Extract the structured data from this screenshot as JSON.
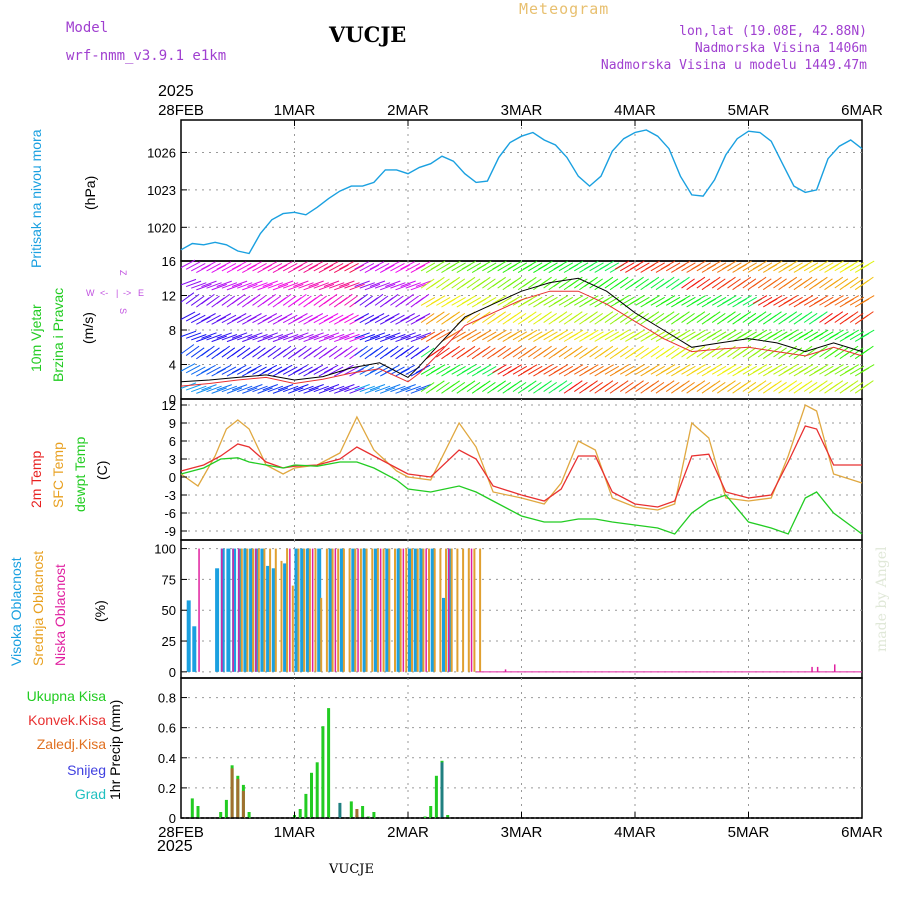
{
  "header": {
    "model_label": "Model",
    "model_name": "wrf-nmm_v3.9.1 e1km",
    "station": "VUCJE",
    "chart_kind": "Meteogram",
    "coords": "lon,lat (19.08E, 42.88N)",
    "elevation": "Nadmorska Visina 1406m",
    "model_elevation": "Nadmorska Visina u modelu 1449.47m",
    "year_top": "2025",
    "year_bottom": "2025",
    "footer_station": "VUCJE",
    "watermark": "made by Angel"
  },
  "colors": {
    "pressure": "#1aa0e0",
    "temp2m": "#e83030",
    "sfc_temp": "#e0a840",
    "dewpt": "#22cc22",
    "high_cloud": "#1aa0e0",
    "mid_cloud": "#e0a030",
    "low_cloud": "#e020a0",
    "total_precip": "#22cc22",
    "conv_precip": "#e83030",
    "frozen_precip": "#e07020",
    "snow": "#4040e0",
    "hail": "#20c0c0"
  },
  "chart_data": [
    {
      "type": "line",
      "panel": "pressure",
      "ylabel_lines": [
        "Pritisak na nivou mora",
        "(hPa)"
      ],
      "x_ticks": [
        "28FEB",
        "1MAR",
        "2MAR",
        "3MAR",
        "4MAR",
        "5MAR",
        "6MAR"
      ],
      "y_ticks": [
        1020,
        1023,
        1026
      ],
      "ylim": [
        1017.3,
        1028.6
      ],
      "grid": true,
      "series": [
        {
          "x": [
            0,
            0.1,
            0.2,
            0.3,
            0.4,
            0.5,
            0.6,
            0.7,
            0.8,
            0.9,
            1.0,
            1.1,
            1.2,
            1.3,
            1.4,
            1.5,
            1.6,
            1.7,
            1.8,
            1.9,
            2.0,
            2.1,
            2.2,
            2.3,
            2.4,
            2.5,
            2.6,
            2.7,
            2.8,
            2.9,
            3.0,
            3.1,
            3.2,
            3.3,
            3.4,
            3.5,
            3.6,
            3.7,
            3.8,
            3.9,
            4.0,
            4.1,
            4.2,
            4.3,
            4.4,
            4.5,
            4.6,
            4.7,
            4.8,
            4.9,
            5.0,
            5.1,
            5.2,
            5.3,
            5.4,
            5.5,
            5.6,
            5.7,
            5.8,
            5.9,
            6.0
          ],
          "values": [
            1018.2,
            1018.7,
            1018.6,
            1018.8,
            1018.6,
            1018.1,
            1017.9,
            1019.5,
            1020.6,
            1021.1,
            1021.2,
            1021.0,
            1021.6,
            1022.3,
            1022.9,
            1023.3,
            1023.3,
            1023.6,
            1024.6,
            1024.6,
            1024.3,
            1024.8,
            1025.1,
            1025.7,
            1025.3,
            1024.3,
            1023.6,
            1023.7,
            1025.6,
            1026.8,
            1027.3,
            1027.6,
            1027.0,
            1026.6,
            1025.6,
            1024.1,
            1023.3,
            1024.1,
            1026.1,
            1027.1,
            1027.6,
            1027.8,
            1027.3,
            1026.3,
            1024.1,
            1022.6,
            1022.5,
            1023.8,
            1025.8,
            1027.1,
            1027.7,
            1027.6,
            1026.9,
            1025.1,
            1023.3,
            1022.8,
            1023.0,
            1025.5,
            1026.5,
            1027.0,
            1026.3
          ]
        }
      ]
    },
    {
      "type": "line",
      "panel": "wind",
      "ylabel_lines": [
        "10m Vjetar",
        "Brzina i Pravac",
        "(m/s)"
      ],
      "direction_key": [
        "Z",
        "W",
        "<-",
        "|",
        "->",
        "E",
        "S"
      ],
      "y_ticks": [
        0,
        4,
        8,
        12,
        16
      ],
      "ylim": [
        0,
        16
      ],
      "grid": true,
      "series": [
        {
          "name": "wind_speed",
          "x": [
            0,
            0.25,
            0.5,
            0.75,
            1.0,
            1.25,
            1.5,
            1.75,
            2.0,
            2.1,
            2.25,
            2.5,
            2.75,
            3.0,
            3.25,
            3.5,
            3.75,
            4.0,
            4.25,
            4.5,
            4.75,
            5.0,
            5.25,
            5.5,
            5.75,
            6.0
          ],
          "values": [
            2.0,
            2.2,
            2.5,
            2.8,
            2.2,
            2.6,
            3.6,
            4.2,
            2.5,
            3.8,
            6.0,
            9.5,
            11.0,
            12.5,
            13.5,
            14.0,
            12.5,
            10.0,
            8.0,
            6.0,
            6.5,
            7.0,
            6.5,
            5.5,
            6.5,
            5.5
          ]
        },
        {
          "name": "wind_gust",
          "x": [
            0,
            0.25,
            0.5,
            0.75,
            1.0,
            1.25,
            1.5,
            1.75,
            2.0,
            2.1,
            2.25,
            2.5,
            2.75,
            3.0,
            3.25,
            3.5,
            3.75,
            4.0,
            4.25,
            4.5,
            4.75,
            5.0,
            5.25,
            5.5,
            5.75,
            6.0
          ],
          "values": [
            1.5,
            1.8,
            2.2,
            2.5,
            1.8,
            2.3,
            3.0,
            3.5,
            2.0,
            3.0,
            5.0,
            8.5,
            10.0,
            11.5,
            12.5,
            12.5,
            11.0,
            9.0,
            7.0,
            5.5,
            5.8,
            6.0,
            5.5,
            5.0,
            6.0,
            5.0
          ]
        }
      ]
    },
    {
      "type": "line",
      "panel": "temperature",
      "ylabel_lines": [
        "2m Temp",
        "SFC Temp",
        "dewpt Temp",
        "(C)"
      ],
      "y_ticks": [
        -9,
        -6,
        -3,
        0,
        3,
        6,
        9,
        12
      ],
      "ylim": [
        -10.5,
        13
      ],
      "grid": true,
      "series": [
        {
          "name": "2m Temp",
          "x": [
            0,
            0.2,
            0.35,
            0.5,
            0.6,
            0.75,
            0.9,
            1.0,
            1.2,
            1.4,
            1.55,
            1.7,
            1.9,
            2.0,
            2.2,
            2.45,
            2.6,
            2.75,
            3.0,
            3.2,
            3.35,
            3.5,
            3.65,
            3.8,
            4.0,
            4.2,
            4.35,
            4.5,
            4.65,
            4.8,
            5.0,
            5.2,
            5.35,
            5.5,
            5.6,
            5.75,
            6.0
          ],
          "values": [
            1.0,
            2.0,
            3.5,
            5.5,
            5.0,
            2.5,
            1.5,
            1.8,
            2.0,
            3.0,
            5.0,
            3.5,
            1.5,
            0.5,
            0.0,
            4.5,
            3.0,
            -1.5,
            -3.0,
            -4.0,
            -2.0,
            3.5,
            3.5,
            -2.5,
            -4.5,
            -5.0,
            -4.0,
            3.5,
            3.8,
            -2.5,
            -3.5,
            -3.0,
            2.5,
            8.5,
            8.0,
            2.0,
            2.0
          ]
        },
        {
          "name": "SFC Temp",
          "x": [
            0,
            0.15,
            0.3,
            0.4,
            0.5,
            0.6,
            0.75,
            0.9,
            1.0,
            1.2,
            1.4,
            1.55,
            1.7,
            1.9,
            2.0,
            2.2,
            2.45,
            2.6,
            2.75,
            3.0,
            3.2,
            3.35,
            3.5,
            3.65,
            3.8,
            4.0,
            4.2,
            4.35,
            4.5,
            4.65,
            4.8,
            5.0,
            5.2,
            5.35,
            5.5,
            5.6,
            5.75,
            6.0
          ],
          "values": [
            0.5,
            -1.5,
            3.5,
            8.0,
            9.5,
            8.0,
            2.0,
            0.5,
            1.5,
            2.0,
            4.0,
            10.0,
            4.5,
            1.0,
            0.0,
            -0.5,
            9.0,
            5.0,
            -2.5,
            -3.5,
            -4.5,
            -1.0,
            6.0,
            4.5,
            -3.5,
            -5.0,
            -5.5,
            -4.5,
            9.0,
            6.5,
            -3.5,
            -4.0,
            -3.5,
            3.5,
            12.0,
            11.0,
            0.5,
            -1.0
          ]
        },
        {
          "name": "dewpt Temp",
          "x": [
            0,
            0.2,
            0.35,
            0.5,
            0.6,
            0.75,
            0.9,
            1.0,
            1.2,
            1.4,
            1.55,
            1.7,
            1.9,
            2.0,
            2.2,
            2.45,
            2.6,
            2.75,
            3.0,
            3.2,
            3.35,
            3.5,
            3.65,
            3.8,
            4.0,
            4.2,
            4.35,
            4.5,
            4.65,
            4.8,
            5.0,
            5.2,
            5.35,
            5.5,
            5.6,
            5.75,
            6.0
          ],
          "values": [
            0.5,
            1.5,
            3.0,
            3.2,
            2.5,
            2.0,
            1.5,
            2.0,
            1.8,
            2.5,
            2.5,
            1.5,
            -0.5,
            -2.0,
            -2.5,
            -1.5,
            -2.5,
            -4.0,
            -6.5,
            -7.5,
            -7.5,
            -7.0,
            -7.0,
            -7.5,
            -8.0,
            -8.5,
            -9.5,
            -6.0,
            -4.0,
            -3.0,
            -7.5,
            -8.5,
            -9.5,
            -3.5,
            -2.5,
            -6.0,
            -9.5
          ]
        }
      ]
    },
    {
      "type": "bar",
      "panel": "clouds",
      "ylabel_lines": [
        "Visoka Oblacnost",
        "Srednja Oblacnost",
        "Niska Oblacnost",
        "(%)"
      ],
      "y_ticks": [
        0,
        25,
        50,
        75,
        100
      ],
      "ylim": [
        -5,
        107
      ],
      "grid": true,
      "series": [
        {
          "name": "Visoka Oblacnost",
          "x": [
            0.05,
            0.1,
            0.3,
            0.35,
            0.4,
            0.45,
            0.5,
            0.55,
            0.6,
            0.65,
            0.7,
            0.75,
            0.8,
            0.9,
            1.0,
            1.05,
            1.1,
            1.2,
            1.3,
            1.4,
            1.5,
            1.6,
            1.7,
            1.8,
            1.9,
            2.0,
            2.05,
            2.1,
            2.2,
            2.3,
            2.35
          ],
          "values": [
            58,
            37,
            84,
            100,
            100,
            100,
            100,
            100,
            100,
            100,
            100,
            86,
            84,
            88,
            100,
            100,
            100,
            100,
            100,
            100,
            100,
            100,
            100,
            100,
            100,
            100,
            100,
            100,
            100,
            60,
            100
          ]
        },
        {
          "name": "Srednja Oblacnost",
          "x": [
            0.5,
            0.55,
            0.6,
            0.65,
            0.7,
            0.75,
            0.8,
            0.85,
            0.9,
            0.95,
            1.0,
            1.05,
            1.1,
            1.15,
            1.2,
            1.25,
            1.3,
            1.35,
            1.4,
            1.45,
            1.5,
            1.55,
            1.6,
            1.65,
            1.7,
            1.75,
            1.8,
            1.85,
            1.9,
            1.95,
            2.0,
            2.05,
            2.1,
            2.15,
            2.2,
            2.25,
            2.3,
            2.35,
            2.4,
            2.45,
            2.5,
            2.55,
            2.6
          ],
          "values": [
            100,
            100,
            100,
            100,
            100,
            100,
            100,
            90,
            100,
            70,
            100,
            100,
            100,
            100,
            60,
            100,
            100,
            100,
            100,
            100,
            100,
            100,
            100,
            100,
            100,
            100,
            100,
            100,
            100,
            100,
            100,
            100,
            100,
            100,
            100,
            100,
            100,
            100,
            100,
            100,
            100,
            100,
            100
          ]
        },
        {
          "name": "Niska Oblacnost",
          "x": [
            0.1,
            0.3,
            0.4,
            0.45,
            0.6,
            0.9,
            1.1,
            1.3,
            1.5,
            1.7,
            1.9,
            2.1,
            2.3,
            2.5,
            2.8,
            5.5,
            5.55,
            5.7
          ],
          "values": [
            100,
            100,
            100,
            100,
            100,
            100,
            100,
            100,
            100,
            100,
            100,
            100,
            100,
            100,
            2,
            4,
            4,
            6
          ]
        }
      ]
    },
    {
      "type": "bar",
      "panel": "precip",
      "ylabel_lines": [
        "1hr Precip (mm)"
      ],
      "legend": [
        "Ukupna Kisa",
        "Konvek.Kisa",
        "Zaledj.Kisa",
        "Snijeg",
        "Grad"
      ],
      "y_ticks": [
        0,
        0.2,
        0.4,
        0.6,
        0.8
      ],
      "ylim": [
        0,
        0.93
      ],
      "grid": true,
      "series": [
        {
          "name": "Ukupna Kisa",
          "x": [
            0.1,
            0.15,
            0.35,
            0.4,
            0.45,
            0.5,
            0.55,
            0.6,
            1.0,
            1.05,
            1.1,
            1.15,
            1.2,
            1.25,
            1.3,
            1.5,
            1.55,
            1.6,
            1.65,
            1.7,
            2.15,
            2.2,
            2.25,
            2.3,
            2.35
          ],
          "values": [
            0.13,
            0.08,
            0.04,
            0.12,
            0.35,
            0.28,
            0.22,
            0.04,
            0.02,
            0.06,
            0.16,
            0.3,
            0.37,
            0.61,
            0.73,
            0.11,
            0.02,
            0.08,
            0.01,
            0.04,
            0.01,
            0.08,
            0.28,
            0.38,
            0.02
          ]
        },
        {
          "name": "Konvek.Kisa",
          "x": [
            0.45,
            0.5,
            0.55,
            1.55
          ],
          "values": [
            0.33,
            0.26,
            0.18,
            0.06
          ]
        },
        {
          "name": "Snijeg",
          "x": [
            1.4,
            2.3
          ],
          "values": [
            0.1,
            0.37
          ]
        }
      ]
    }
  ]
}
